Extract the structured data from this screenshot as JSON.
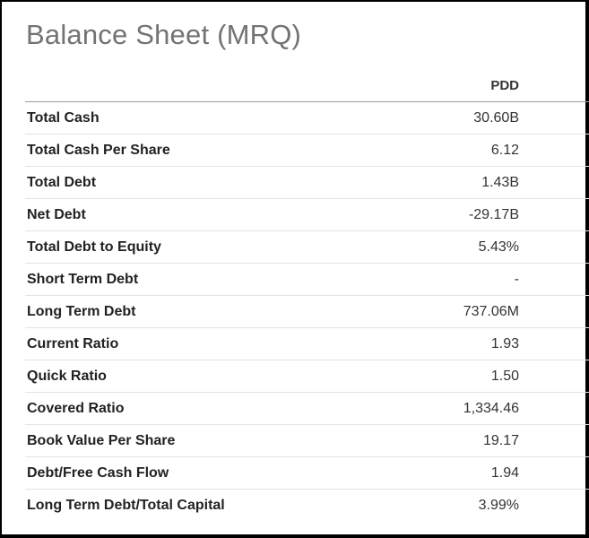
{
  "title": "Balance Sheet (MRQ)",
  "table": {
    "label_header": "",
    "column_header": "PDD",
    "rows": [
      {
        "label": "Total Cash",
        "value": "30.60B"
      },
      {
        "label": "Total Cash Per Share",
        "value": "6.12"
      },
      {
        "label": "Total Debt",
        "value": "1.43B"
      },
      {
        "label": "Net Debt",
        "value": "-29.17B"
      },
      {
        "label": "Total Debt to Equity",
        "value": "5.43%"
      },
      {
        "label": "Short Term Debt",
        "value": "-"
      },
      {
        "label": "Long Term Debt",
        "value": "737.06M"
      },
      {
        "label": "Current Ratio",
        "value": "1.93"
      },
      {
        "label": "Quick Ratio",
        "value": "1.50"
      },
      {
        "label": "Covered Ratio",
        "value": "1,334.46"
      },
      {
        "label": "Book Value Per Share",
        "value": "19.17"
      },
      {
        "label": "Debt/Free Cash Flow",
        "value": "1.94"
      },
      {
        "label": "Long Term Debt/Total Capital",
        "value": "3.99%"
      }
    ]
  }
}
